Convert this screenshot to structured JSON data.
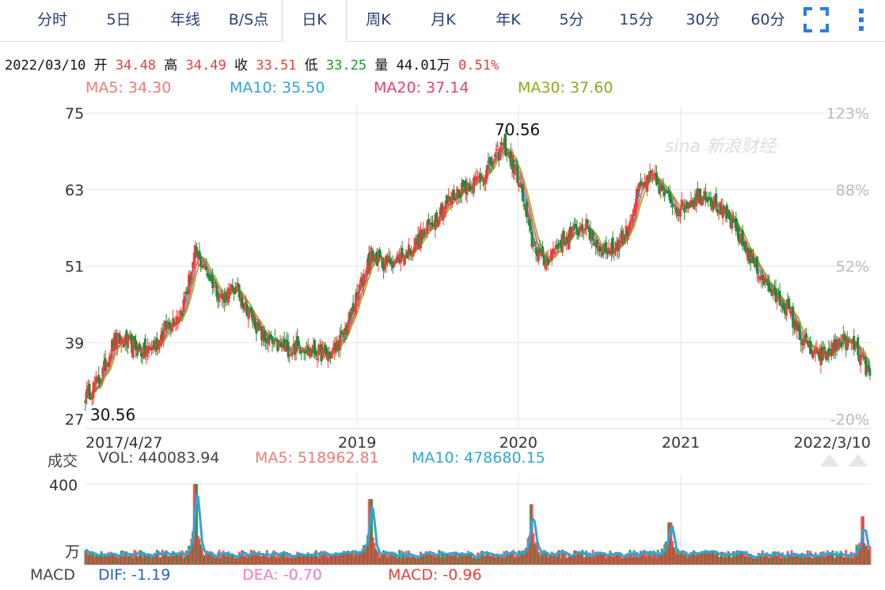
{
  "tabs": [
    {
      "label": "分时"
    },
    {
      "label": "5日"
    },
    {
      "label": "年线"
    },
    {
      "label": "B/S点"
    },
    {
      "label": "日K",
      "active": true
    },
    {
      "label": "周K"
    },
    {
      "label": "月K"
    },
    {
      "label": "年K"
    },
    {
      "label": "5分"
    },
    {
      "label": "15分"
    },
    {
      "label": "30分"
    },
    {
      "label": "60分"
    }
  ],
  "toolbar": {
    "fullscreen_icon": "fullscreen-icon",
    "more_icon": "more-vertical-icon"
  },
  "quote": {
    "date": "2022/03/10",
    "open_label": "开",
    "open": "34.48",
    "high_label": "高",
    "high": "34.49",
    "close_label": "收",
    "close": "33.51",
    "low_label": "低",
    "low": "33.25",
    "volume_label": "量",
    "volume": "44.01万",
    "change": "0.51%"
  },
  "moving_averages": [
    {
      "label": "MA5: 34.30",
      "color": "#f07a7a"
    },
    {
      "label": "MA10: 35.50",
      "color": "#2fa6d8"
    },
    {
      "label": "MA20: 37.14",
      "color": "#e8416b"
    },
    {
      "label": "MA30: 37.60",
      "color": "#8fa81a"
    }
  ],
  "volume_header": {
    "title": "成交",
    "vol": "VOL: 440083.94",
    "ma5": "MA5: 518962.81",
    "ma10": "MA10: 478680.15"
  },
  "macd_header": {
    "title": "MACD",
    "dif": "DIF: -1.19",
    "dea": "DEA: -0.70",
    "macd": "MACD: -0.96"
  },
  "watermark": "sina 新浪财经",
  "colors": {
    "up": "#e8413b",
    "down": "#1e8a3a",
    "accent": "#2a7de1",
    "grid": "#e4e4e4"
  },
  "chart_data": [
    {
      "type": "candlestick",
      "ylim": [
        27,
        75
      ],
      "yticks": [
        "75",
        "63",
        "51",
        "39",
        "27"
      ],
      "right_ticks": [
        "123%",
        "88%",
        "52%",
        "-20%"
      ],
      "right_tick_values": [
        75,
        63,
        51,
        27
      ],
      "x_labels": [
        "2017/4/27",
        "2019",
        "2020",
        "2021",
        "2022/3/10"
      ],
      "x_label_dates": [
        "2017-04-27",
        "2019-01-02",
        "2020-01-02",
        "2021-01-04",
        "2022-03-10"
      ],
      "annotations": [
        {
          "text": "70.56",
          "date": "2019-12-31",
          "value": 70.56
        },
        {
          "text": "30.56",
          "date": "2017-04-27",
          "value": 30.56
        }
      ],
      "close_series": {
        "dates": [
          "2017-04-27",
          "2017-06-01",
          "2017-07-01",
          "2017-08-01",
          "2017-09-01",
          "2017-10-01",
          "2017-11-01",
          "2017-12-01",
          "2018-01-01",
          "2018-02-01",
          "2018-03-01",
          "2018-04-01",
          "2018-05-01",
          "2018-06-01",
          "2018-07-01",
          "2018-08-01",
          "2018-09-01",
          "2018-10-01",
          "2018-11-01",
          "2018-12-01",
          "2019-01-01",
          "2019-02-01",
          "2019-03-01",
          "2019-04-01",
          "2019-05-01",
          "2019-06-01",
          "2019-07-01",
          "2019-08-01",
          "2019-09-01",
          "2019-10-01",
          "2019-11-01",
          "2019-12-01",
          "2020-01-01",
          "2020-02-01",
          "2020-03-01",
          "2020-04-01",
          "2020-05-01",
          "2020-06-01",
          "2020-07-01",
          "2020-08-01",
          "2020-09-01",
          "2020-10-01",
          "2020-11-01",
          "2020-12-01",
          "2021-01-01",
          "2021-02-01",
          "2021-03-01",
          "2021-04-01",
          "2021-05-01",
          "2021-06-01",
          "2021-07-01",
          "2021-08-01",
          "2021-09-01",
          "2021-10-01",
          "2021-11-01",
          "2021-12-01",
          "2022-01-01",
          "2022-02-01",
          "2022-03-10"
        ],
        "values": [
          30.6,
          33.5,
          39.5,
          39.0,
          37.5,
          38.5,
          42.0,
          44.0,
          53.0,
          49.5,
          46.0,
          47.5,
          44.0,
          40.0,
          38.5,
          38.0,
          38.5,
          37.5,
          37.0,
          40.0,
          46.0,
          53.0,
          51.5,
          52.0,
          53.5,
          56.0,
          59.0,
          61.5,
          63.5,
          64.5,
          67.0,
          70.0,
          65.0,
          55.0,
          51.5,
          54.5,
          56.0,
          57.5,
          54.0,
          53.5,
          56.0,
          63.0,
          65.0,
          62.0,
          60.0,
          61.5,
          62.5,
          60.0,
          57.5,
          53.5,
          50.0,
          46.5,
          44.5,
          40.0,
          37.0,
          37.0,
          39.5,
          38.5,
          33.5
        ]
      }
    },
    {
      "type": "bar",
      "title": "成交",
      "unit": "万",
      "ylim": [
        0,
        400
      ],
      "yticks": [
        "400"
      ],
      "peaks": [
        {
          "date": "2018-01-01",
          "value": 400
        },
        {
          "date": "2019-02-01",
          "value": 325
        },
        {
          "date": "2020-02-01",
          "value": 300
        },
        {
          "date": "2020-12-10",
          "value": 210
        },
        {
          "date": "2022-02-20",
          "value": 240
        }
      ],
      "typical_value": 55
    }
  ]
}
